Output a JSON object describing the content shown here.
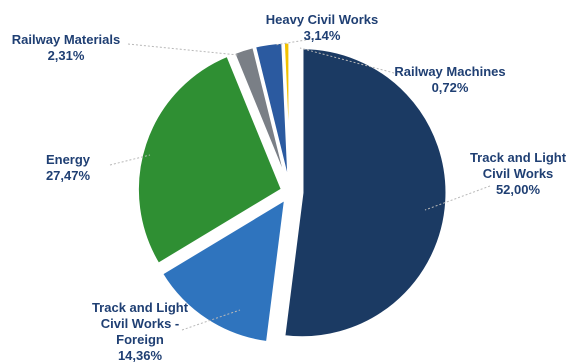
{
  "chart_data": {
    "type": "pie",
    "slices": [
      {
        "label": [
          "Track and Light",
          "Civil Works"
        ],
        "value_text": "52,00%",
        "value": 52.0,
        "color": "#1b3a63",
        "label_color": "#1f3f73"
      },
      {
        "label": [
          "Track and Light",
          "Civil Works -",
          "Foreign"
        ],
        "value_text": "14,36%",
        "value": 14.36,
        "color": "#2f74be",
        "label_color": "#1f3f73"
      },
      {
        "label": [
          "Energy"
        ],
        "value_text": "27,47%",
        "value": 27.47,
        "color": "#2f8f33",
        "label_color": "#1f3f73"
      },
      {
        "label": [
          "Railway Materials"
        ],
        "value_text": "2,31%",
        "value": 2.31,
        "color": "#7a7f86",
        "label_color": "#1f3f73"
      },
      {
        "label": [
          "Heavy Civil Works"
        ],
        "value_text": "3,14%",
        "value": 3.14,
        "color": "#2b5aa0",
        "label_color": "#1f3f73"
      },
      {
        "label": [
          "Railway Machines"
        ],
        "value_text": "0,72%",
        "value": 0.72,
        "color": "#f2c200",
        "label_color": "#1f3f73"
      }
    ]
  }
}
